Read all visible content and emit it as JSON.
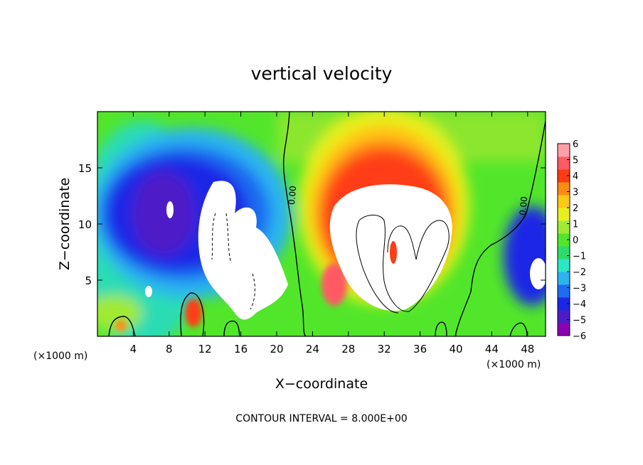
{
  "chart_data": {
    "type": "heatmap",
    "title": "vertical velocity",
    "xlabel": "X−coordinate",
    "ylabel": "Z−coordinate",
    "x_unit_left": "(×1000 m)",
    "x_unit_right": "(×1000 m)",
    "xlim": [
      0,
      50
    ],
    "ylim": [
      0,
      20
    ],
    "xticks": [
      4,
      8,
      12,
      16,
      20,
      24,
      28,
      32,
      36,
      40,
      44,
      48
    ],
    "yticks": [
      5,
      10,
      15
    ],
    "colorbar": {
      "min": -6,
      "max": 6,
      "ticks": [
        6,
        5,
        4,
        3,
        2,
        1,
        0,
        -1,
        -2,
        -3,
        -4,
        -5,
        -6
      ],
      "tick_labels": [
        "6",
        "5",
        "4",
        "3",
        "2",
        "1",
        "0",
        "−1",
        "−2",
        "−3",
        "−4",
        "−5",
        "−6"
      ],
      "colors": [
        "#8c00b4",
        "#4d1cc8",
        "#1a28e6",
        "#1e6cf0",
        "#2cb4f0",
        "#2ce6c8",
        "#2cdc6a",
        "#52e62a",
        "#a0ea32",
        "#e6f01e",
        "#ffc814",
        "#ff8c14",
        "#ff3c14",
        "#ff5a64",
        "#ffa0a8"
      ]
    },
    "contour_labels": [
      "0.00",
      "0.00"
    ],
    "contour_interval_text": "CONTOUR INTERVAL = 8.000E+00",
    "features": [
      {
        "kind": "downdraft",
        "x_range": [
          1,
          21
        ],
        "z_range": [
          1,
          19
        ],
        "min_value": -6
      },
      {
        "kind": "updraft",
        "x_range": [
          23,
          41
        ],
        "z_range": [
          0,
          18
        ],
        "max_value": 6
      },
      {
        "kind": "downdraft",
        "x_range": [
          46,
          50
        ],
        "z_range": [
          2,
          11
        ],
        "min_value": -6
      }
    ]
  }
}
